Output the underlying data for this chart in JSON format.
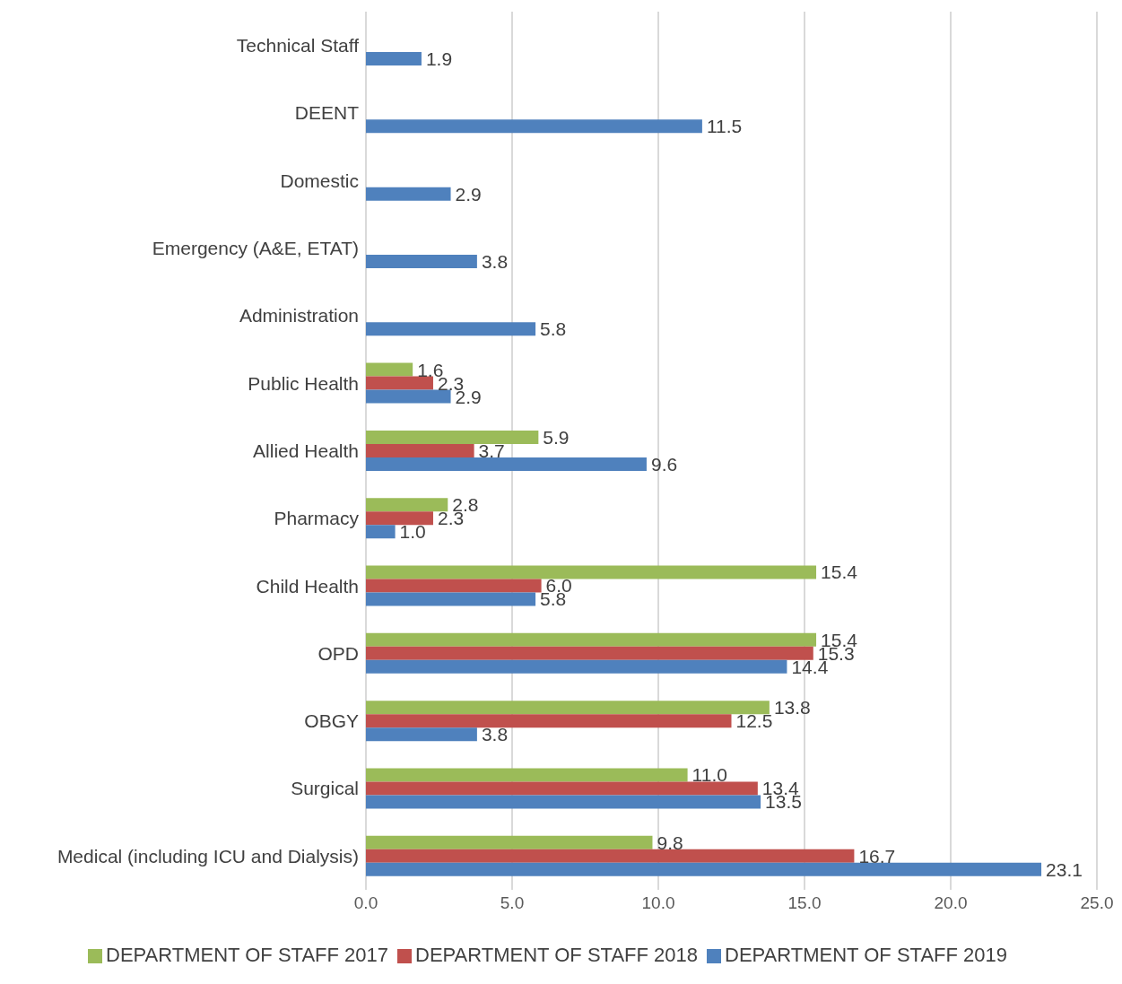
{
  "chart_data": {
    "type": "bar",
    "orientation": "horizontal",
    "categories": [
      "Technical Staff",
      "DEENT",
      "Domestic",
      "Emergency (A&E, ETAT)",
      "Administration",
      "Public Health",
      "Allied Health",
      "Pharmacy",
      "Child Health",
      "OPD",
      "OBGY",
      "Surgical",
      "Medical (including ICU and Dialysis)"
    ],
    "series": [
      {
        "name": "DEPARTMENT OF STAFF 2017",
        "color": "#9bbb59",
        "values": [
          null,
          null,
          null,
          null,
          null,
          1.6,
          5.9,
          2.8,
          15.4,
          15.4,
          13.8,
          11.0,
          9.8
        ],
        "value_labels": [
          null,
          null,
          null,
          null,
          null,
          "1.6",
          "5.9",
          "2.8",
          "15.4",
          "15.4",
          "13.8",
          "11.0",
          "9.8"
        ]
      },
      {
        "name": "DEPARTMENT OF STAFF 2018",
        "color": "#c0504d",
        "values": [
          null,
          null,
          null,
          null,
          null,
          2.3,
          3.7,
          2.3,
          6.0,
          15.3,
          12.5,
          13.4,
          16.7
        ],
        "value_labels": [
          null,
          null,
          null,
          null,
          null,
          "2.3",
          "3.7",
          "2.3",
          "6.0",
          "15.3",
          "12.5",
          "13.4",
          "16.7"
        ]
      },
      {
        "name": "DEPARTMENT OF STAFF 2019",
        "color": "#4f81bd",
        "values": [
          1.9,
          11.5,
          2.9,
          3.8,
          5.8,
          2.9,
          9.6,
          1.0,
          5.8,
          14.4,
          3.8,
          13.5,
          23.1
        ],
        "value_labels": [
          "1.9",
          "11.5",
          "2.9",
          "3.8",
          "5.8",
          "2.9",
          "9.6",
          "1.0",
          "5.8",
          "14.4",
          "3.8",
          "13.5",
          "23.1"
        ]
      }
    ],
    "xlim": [
      0,
      25
    ],
    "xticks": [
      {
        "value": 0,
        "label": "0.0"
      },
      {
        "value": 5,
        "label": "5.0"
      },
      {
        "value": 10,
        "label": "10.0"
      },
      {
        "value": 15,
        "label": "15.0"
      },
      {
        "value": 20,
        "label": "20.0"
      },
      {
        "value": 25,
        "label": "25.0"
      }
    ],
    "grid": "x",
    "legend": "bottom"
  }
}
